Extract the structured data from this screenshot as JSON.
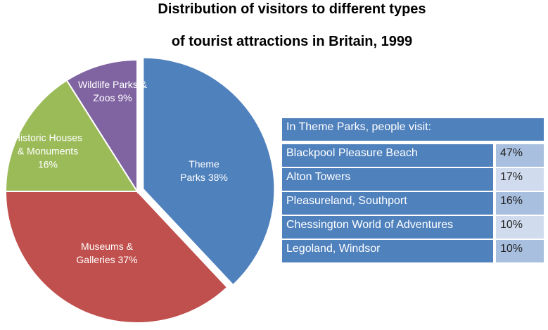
{
  "chart_data": {
    "type": "pie",
    "title": "Distribution of visitors to different types",
    "subtitle": "of tourist attractions in Britain, 1999",
    "categories": [
      "Theme Parks",
      "Museums & Galleries",
      "Historic Houses & Monuments",
      "Wildlife Parks & Zoos"
    ],
    "values": [
      38,
      37,
      16,
      9
    ],
    "value_labels": [
      "38%",
      "37%",
      "16%",
      "9%"
    ],
    "colors": [
      "#4f81bd",
      "#c0504d",
      "#9bbb59",
      "#8064a2"
    ]
  },
  "table": {
    "title": "In Theme Parks, people visit:",
    "rows": [
      [
        "Blackpool Pleasure Beach",
        "47%"
      ],
      [
        "Alton Towers",
        "17%"
      ],
      [
        "Pleasureland, Southport",
        "16%"
      ],
      [
        "Chessington World of Adventures",
        "10%"
      ],
      [
        "Legoland, Windsor",
        "10%"
      ]
    ]
  }
}
